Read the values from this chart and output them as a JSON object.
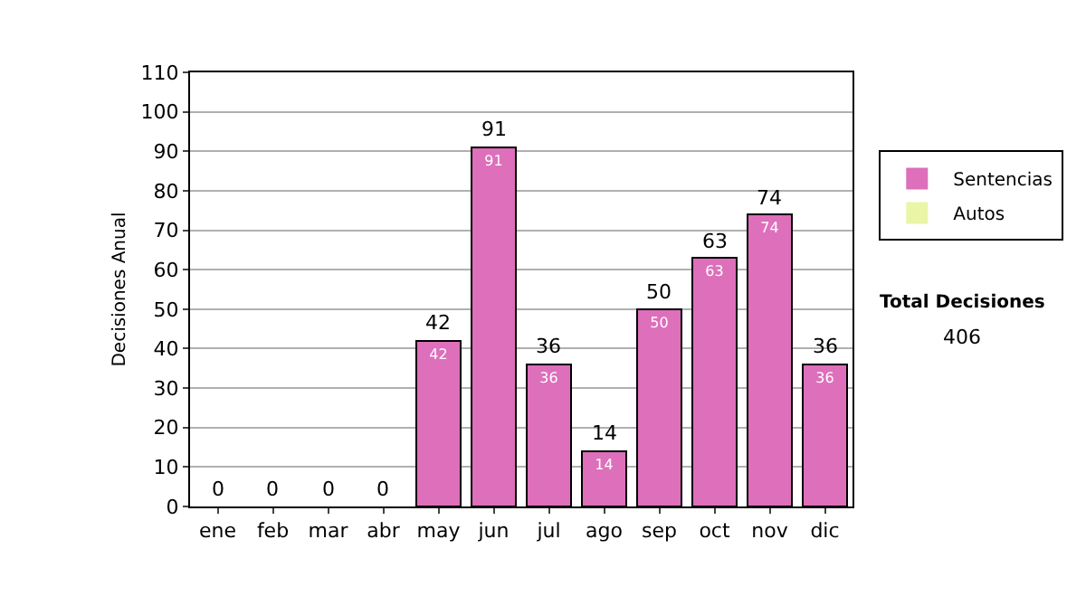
{
  "chart_data": {
    "type": "bar",
    "stacked": true,
    "ylabel": "Decisiones Anual",
    "categories": [
      "ene",
      "feb",
      "mar",
      "abr",
      "may",
      "jun",
      "jul",
      "ago",
      "sep",
      "oct",
      "nov",
      "dic"
    ],
    "series": [
      {
        "name": "Sentencias",
        "color": "#dd6fbb",
        "values": [
          0,
          0,
          0,
          0,
          42,
          91,
          36,
          14,
          50,
          63,
          74,
          36
        ],
        "value_labels": [
          null,
          null,
          null,
          null,
          "42",
          "91",
          "36",
          "14",
          "50",
          "63",
          "74",
          "36"
        ]
      },
      {
        "name": "Autos",
        "color": "#eaf5a8",
        "values": [
          0,
          0,
          0,
          0,
          0,
          0,
          0,
          0,
          0,
          0,
          0,
          0
        ]
      }
    ],
    "totals": [
      "0",
      "0",
      "0",
      "0",
      "42",
      "91",
      "36",
      "14",
      "50",
      "63",
      "74",
      "36"
    ],
    "ylim": [
      0,
      110
    ],
    "yticks": [
      0,
      10,
      20,
      30,
      40,
      50,
      60,
      70,
      80,
      90,
      100,
      110
    ],
    "grid": "y",
    "legend": "right",
    "annotations": [
      "Total Decisiones",
      "406"
    ]
  }
}
